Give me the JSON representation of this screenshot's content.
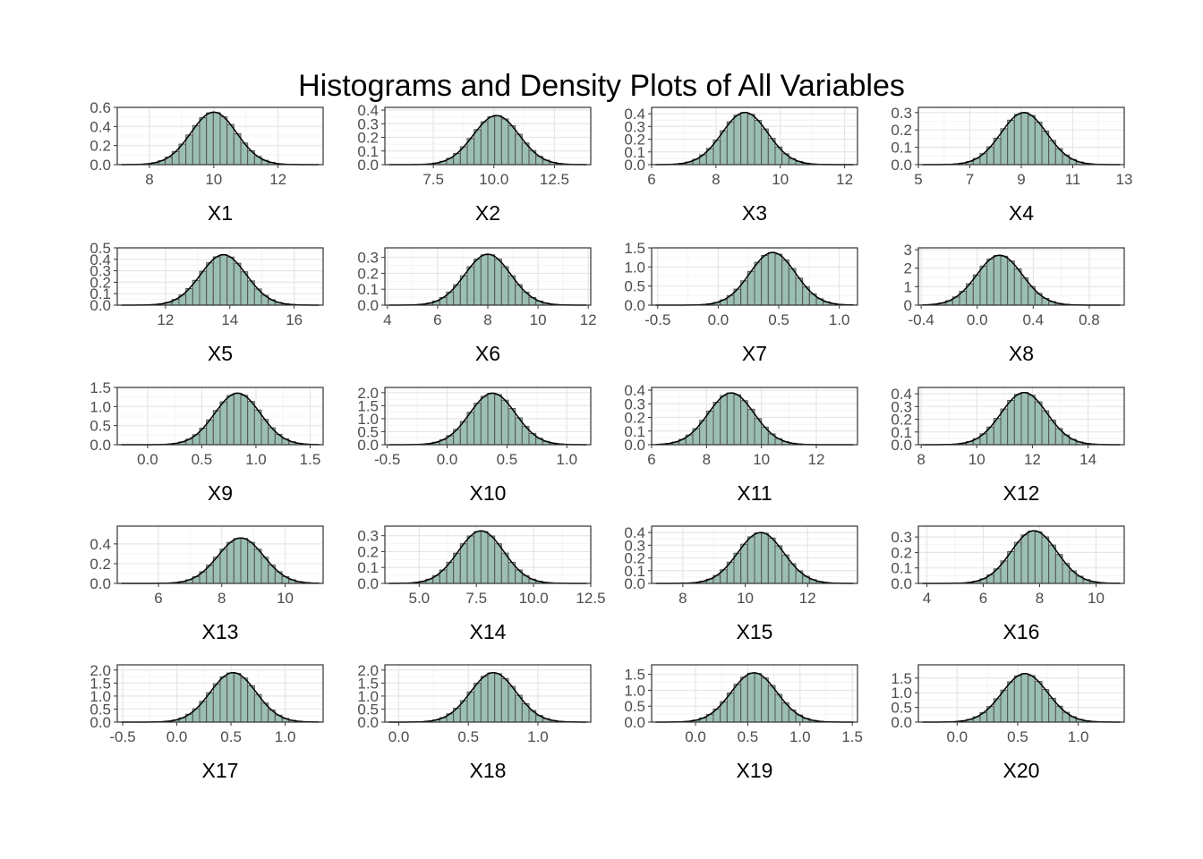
{
  "title": "Histograms and Density Plots of All Variables",
  "colors": {
    "bar_fill": "#9bbfb2",
    "bar_stroke": "#555555",
    "density_line": "#000000",
    "grid_major": "#e6e6e6",
    "grid_minor": "#f4f4f4",
    "panel_border": "#333333"
  },
  "chart_data": [
    {
      "type": "histogram",
      "xlabel": "X1",
      "xlim": [
        7.0,
        13.4
      ],
      "ylim": [
        0,
        0.6
      ],
      "xticks": [
        8,
        10,
        12
      ],
      "xtick_labels": [
        "8",
        "10",
        "12"
      ],
      "yticks": [
        0,
        0.2,
        0.4,
        0.6
      ],
      "ytick_labels": [
        "0.0",
        "0.2",
        "0.4",
        "0.6"
      ],
      "peak_x": 10.0,
      "peak_y": 0.55
    },
    {
      "type": "histogram",
      "xlabel": "X2",
      "xlim": [
        5.5,
        14.0
      ],
      "ylim": [
        0,
        0.42
      ],
      "xticks": [
        7.5,
        10.0,
        12.5
      ],
      "xtick_labels": [
        "7.5",
        "10.0",
        "12.5"
      ],
      "yticks": [
        0,
        0.1,
        0.2,
        0.3,
        0.4
      ],
      "ytick_labels": [
        "0.0",
        "0.1",
        "0.2",
        "0.3",
        "0.4"
      ],
      "peak_x": 10.1,
      "peak_y": 0.36
    },
    {
      "type": "histogram",
      "xlabel": "X3",
      "xlim": [
        6.0,
        12.4
      ],
      "ylim": [
        0,
        0.45
      ],
      "xticks": [
        6,
        8,
        10,
        12
      ],
      "xtick_labels": [
        "6",
        "8",
        "10",
        "12"
      ],
      "yticks": [
        0,
        0.1,
        0.2,
        0.3,
        0.4
      ],
      "ytick_labels": [
        "0.0",
        "0.1",
        "0.2",
        "0.3",
        "0.4"
      ],
      "peak_x": 8.9,
      "peak_y": 0.41
    },
    {
      "type": "histogram",
      "xlabel": "X4",
      "xlim": [
        5.0,
        13.0
      ],
      "ylim": [
        0,
        0.33
      ],
      "xticks": [
        5,
        7,
        9,
        11,
        13
      ],
      "xtick_labels": [
        "5",
        "7",
        "9",
        "11",
        "13"
      ],
      "yticks": [
        0,
        0.1,
        0.2,
        0.3
      ],
      "ytick_labels": [
        "0.0",
        "0.1",
        "0.2",
        "0.3"
      ],
      "peak_x": 9.1,
      "peak_y": 0.3
    },
    {
      "type": "histogram",
      "xlabel": "X5",
      "xlim": [
        10.5,
        16.9
      ],
      "ylim": [
        0,
        0.5
      ],
      "xticks": [
        12,
        14,
        16
      ],
      "xtick_labels": [
        "12",
        "14",
        "16"
      ],
      "yticks": [
        0,
        0.1,
        0.2,
        0.3,
        0.4,
        0.5
      ],
      "ytick_labels": [
        "0.0",
        "0.1",
        "0.2",
        "0.3",
        "0.4",
        "0.5"
      ],
      "peak_x": 13.8,
      "peak_y": 0.44
    },
    {
      "type": "histogram",
      "xlabel": "X6",
      "xlim": [
        3.9,
        12.1
      ],
      "ylim": [
        0,
        0.36
      ],
      "xticks": [
        4,
        6,
        8,
        10,
        12
      ],
      "xtick_labels": [
        "4",
        "6",
        "8",
        "10",
        "12"
      ],
      "yticks": [
        0,
        0.1,
        0.2,
        0.3
      ],
      "ytick_labels": [
        "0.0",
        "0.1",
        "0.2",
        "0.3"
      ],
      "peak_x": 8.0,
      "peak_y": 0.32
    },
    {
      "type": "histogram",
      "xlabel": "X7",
      "xlim": [
        -0.55,
        1.15
      ],
      "ylim": [
        0,
        1.5
      ],
      "xticks": [
        -0.5,
        0.0,
        0.5,
        1.0
      ],
      "xtick_labels": [
        "-0.5",
        "0.0",
        "0.5",
        "1.0"
      ],
      "yticks": [
        0,
        0.5,
        1.0,
        1.5
      ],
      "ytick_labels": [
        "0.0",
        "0.5",
        "1.0",
        "1.5"
      ],
      "peak_x": 0.45,
      "peak_y": 1.38
    },
    {
      "type": "histogram",
      "xlabel": "X8",
      "xlim": [
        -0.42,
        1.05
      ],
      "ylim": [
        0,
        3.1
      ],
      "xticks": [
        -0.4,
        0.0,
        0.4,
        0.8
      ],
      "xtick_labels": [
        "-0.4",
        "0.0",
        "0.4",
        "0.8"
      ],
      "yticks": [
        0,
        1,
        2,
        3
      ],
      "ytick_labels": [
        "0",
        "1",
        "2",
        "3"
      ],
      "peak_x": 0.16,
      "peak_y": 2.7
    },
    {
      "type": "histogram",
      "xlabel": "X9",
      "xlim": [
        -0.28,
        1.62
      ],
      "ylim": [
        0,
        1.5
      ],
      "xticks": [
        0.0,
        0.5,
        1.0,
        1.5
      ],
      "xtick_labels": [
        "0.0",
        "0.5",
        "1.0",
        "1.5"
      ],
      "yticks": [
        0,
        0.5,
        1.0,
        1.5
      ],
      "ytick_labels": [
        "0.0",
        "0.5",
        "1.0",
        "1.5"
      ],
      "peak_x": 0.83,
      "peak_y": 1.35
    },
    {
      "type": "histogram",
      "xlabel": "X10",
      "xlim": [
        -0.52,
        1.2
      ],
      "ylim": [
        0,
        2.2
      ],
      "xticks": [
        -0.5,
        0.0,
        0.5,
        1.0
      ],
      "xtick_labels": [
        "-0.5",
        "0.0",
        "0.5",
        "1.0"
      ],
      "yticks": [
        0,
        0.5,
        1.0,
        1.5,
        2.0
      ],
      "ytick_labels": [
        "0.0",
        "0.5",
        "1.0",
        "1.5",
        "2.0"
      ],
      "peak_x": 0.38,
      "peak_y": 1.98
    },
    {
      "type": "histogram",
      "xlabel": "X11",
      "xlim": [
        6.0,
        13.5
      ],
      "ylim": [
        0,
        0.42
      ],
      "xticks": [
        6,
        8,
        10,
        12
      ],
      "xtick_labels": [
        "6",
        "8",
        "10",
        "12"
      ],
      "yticks": [
        0,
        0.1,
        0.2,
        0.3,
        0.4
      ],
      "ytick_labels": [
        "0.0",
        "0.1",
        "0.2",
        "0.3",
        "0.4"
      ],
      "peak_x": 8.9,
      "peak_y": 0.38
    },
    {
      "type": "histogram",
      "xlabel": "X12",
      "xlim": [
        7.9,
        15.3
      ],
      "ylim": [
        0,
        0.45
      ],
      "xticks": [
        8,
        10,
        12,
        14
      ],
      "xtick_labels": [
        "8",
        "10",
        "12",
        "14"
      ],
      "yticks": [
        0,
        0.1,
        0.2,
        0.3,
        0.4
      ],
      "ytick_labels": [
        "0.0",
        "0.1",
        "0.2",
        "0.3",
        "0.4"
      ],
      "peak_x": 11.7,
      "peak_y": 0.41
    },
    {
      "type": "histogram",
      "xlabel": "X13",
      "xlim": [
        4.7,
        11.2
      ],
      "ylim": [
        0,
        0.58
      ],
      "xticks": [
        6,
        8,
        10
      ],
      "xtick_labels": [
        "6",
        "8",
        "10"
      ],
      "yticks": [
        0,
        0.2,
        0.4
      ],
      "ytick_labels": [
        "0.0",
        "0.2",
        "0.4"
      ],
      "peak_x": 8.6,
      "peak_y": 0.46
    },
    {
      "type": "histogram",
      "xlabel": "X14",
      "xlim": [
        3.5,
        12.5
      ],
      "ylim": [
        0,
        0.36
      ],
      "xticks": [
        5.0,
        7.5,
        10.0,
        12.5
      ],
      "xtick_labels": [
        "5.0",
        "7.5",
        "10.0",
        "12.5"
      ],
      "yticks": [
        0,
        0.1,
        0.2,
        0.3
      ],
      "ytick_labels": [
        "0.0",
        "0.1",
        "0.2",
        "0.3"
      ],
      "peak_x": 7.7,
      "peak_y": 0.33
    },
    {
      "type": "histogram",
      "xlabel": "X15",
      "xlim": [
        7.0,
        13.6
      ],
      "ylim": [
        0,
        0.45
      ],
      "xticks": [
        8,
        10,
        12
      ],
      "xtick_labels": [
        "8",
        "10",
        "12"
      ],
      "yticks": [
        0,
        0.1,
        0.2,
        0.3,
        0.4
      ],
      "ytick_labels": [
        "0.0",
        "0.1",
        "0.2",
        "0.3",
        "0.4"
      ],
      "peak_x": 10.5,
      "peak_y": 0.4
    },
    {
      "type": "histogram",
      "xlabel": "X16",
      "xlim": [
        3.7,
        11.0
      ],
      "ylim": [
        0,
        0.37
      ],
      "xticks": [
        4,
        6,
        8,
        10
      ],
      "xtick_labels": [
        "4",
        "6",
        "8",
        "10"
      ],
      "yticks": [
        0,
        0.1,
        0.2,
        0.3
      ],
      "ytick_labels": [
        "0.0",
        "0.1",
        "0.2",
        "0.3"
      ],
      "peak_x": 7.8,
      "peak_y": 0.34
    },
    {
      "type": "histogram",
      "xlabel": "X17",
      "xlim": [
        -0.55,
        1.35
      ],
      "ylim": [
        0,
        2.2
      ],
      "xticks": [
        -0.5,
        0.0,
        0.5,
        1.0
      ],
      "xtick_labels": [
        "-0.5",
        "0.0",
        "0.5",
        "1.0"
      ],
      "yticks": [
        0,
        0.5,
        1.0,
        1.5,
        2.0
      ],
      "ytick_labels": [
        "0.0",
        "0.5",
        "1.0",
        "1.5",
        "2.0"
      ],
      "peak_x": 0.52,
      "peak_y": 1.9
    },
    {
      "type": "histogram",
      "xlabel": "X18",
      "xlim": [
        -0.1,
        1.38
      ],
      "ylim": [
        0,
        2.2
      ],
      "xticks": [
        0.0,
        0.5,
        1.0
      ],
      "xtick_labels": [
        "0.0",
        "0.5",
        "1.0"
      ],
      "yticks": [
        0,
        0.5,
        1.0,
        1.5,
        2.0
      ],
      "ytick_labels": [
        "0.0",
        "0.5",
        "1.0",
        "1.5",
        "2.0"
      ],
      "peak_x": 0.68,
      "peak_y": 1.9
    },
    {
      "type": "histogram",
      "xlabel": "X19",
      "xlim": [
        -0.42,
        1.55
      ],
      "ylim": [
        0,
        1.8
      ],
      "xticks": [
        0.0,
        0.5,
        1.0,
        1.5
      ],
      "xtick_labels": [
        "0.0",
        "0.5",
        "1.0",
        "1.5"
      ],
      "yticks": [
        0,
        0.5,
        1.0,
        1.5
      ],
      "ytick_labels": [
        "0.0",
        "0.5",
        "1.0",
        "1.5"
      ],
      "peak_x": 0.56,
      "peak_y": 1.55
    },
    {
      "type": "histogram",
      "xlabel": "X20",
      "xlim": [
        -0.32,
        1.38
      ],
      "ylim": [
        0,
        1.95
      ],
      "xticks": [
        0.0,
        0.5,
        1.0
      ],
      "xtick_labels": [
        "0.0",
        "0.5",
        "1.0"
      ],
      "yticks": [
        0,
        0.5,
        1.0,
        1.5
      ],
      "ytick_labels": [
        "0.0",
        "0.5",
        "1.0",
        "1.5"
      ],
      "peak_x": 0.56,
      "peak_y": 1.65
    }
  ]
}
